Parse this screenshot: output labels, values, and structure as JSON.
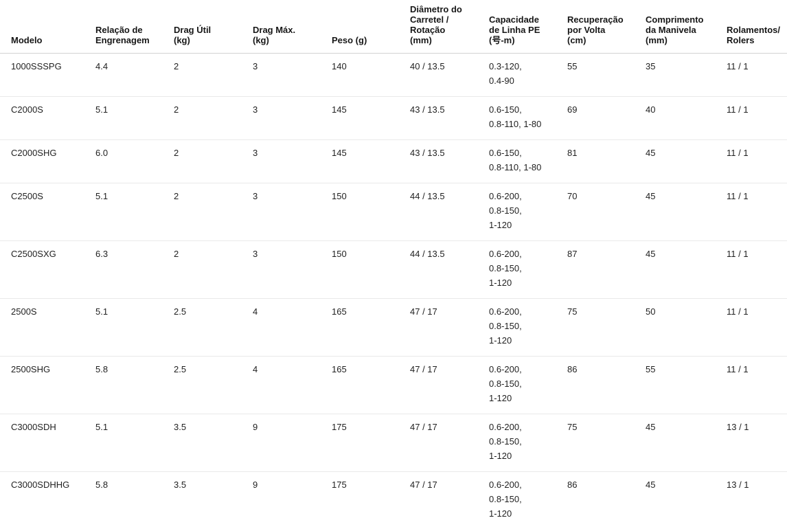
{
  "table": {
    "column_keys": [
      "modelo",
      "relacao-engrenagem",
      "drag-util",
      "drag-max",
      "peso",
      "diametro-carretel",
      "capacidade-linha-pe",
      "recuperacao-volta",
      "comprimento-manivela",
      "rolamentos"
    ],
    "columns": [
      "Modelo",
      "Relação de\nEngrenagem",
      "Drag Útil\n(kg)",
      "Drag Máx.\n(kg)",
      "Peso (g)",
      "Diâmetro do\nCarretel /\nRotação\n(mm)",
      "Capacidade\nde Linha PE\n(号-m)",
      "Recuperação\npor Volta\n(cm)",
      "Comprimento\nda Manivela\n(mm)",
      "Rolamentos/\nRolers"
    ],
    "rows": [
      [
        "1000SSSPG",
        "4.4",
        "2",
        "3",
        "140",
        "40 / 13.5",
        "0.3-120,\n0.4-90",
        "55",
        "35",
        "11 / 1"
      ],
      [
        "C2000S",
        "5.1",
        "2",
        "3",
        "145",
        "43 / 13.5",
        "0.6-150,\n0.8-110, 1-80",
        "69",
        "40",
        "11 / 1"
      ],
      [
        "C2000SHG",
        "6.0",
        "2",
        "3",
        "145",
        "43 / 13.5",
        "0.6-150,\n0.8-110, 1-80",
        "81",
        "45",
        "11 / 1"
      ],
      [
        "C2500S",
        "5.1",
        "2",
        "3",
        "150",
        "44 / 13.5",
        "0.6-200,\n0.8-150,\n1-120",
        "70",
        "45",
        "11 / 1"
      ],
      [
        "C2500SXG",
        "6.3",
        "2",
        "3",
        "150",
        "44 / 13.5",
        "0.6-200,\n0.8-150,\n1-120",
        "87",
        "45",
        "11 / 1"
      ],
      [
        "2500S",
        "5.1",
        "2.5",
        "4",
        "165",
        "47 / 17",
        "0.6-200,\n0.8-150,\n1-120",
        "75",
        "50",
        "11 / 1"
      ],
      [
        "2500SHG",
        "5.8",
        "2.5",
        "4",
        "165",
        "47 / 17",
        "0.6-200,\n0.8-150,\n1-120",
        "86",
        "55",
        "11 / 1"
      ],
      [
        "C3000SDH",
        "5.1",
        "3.5",
        "9",
        "175",
        "47 / 17",
        "0.6-200,\n0.8-150,\n1-120",
        "75",
        "45",
        "13 / 1"
      ],
      [
        "C3000SDHHG",
        "5.8",
        "3.5",
        "9",
        "175",
        "47 / 17",
        "0.6-200,\n0.8-150,\n1-120",
        "86",
        "45",
        "13 / 1"
      ]
    ],
    "colors": {
      "header_text": "#171717",
      "body_text": "#1f1f1f",
      "header_border": "#d1d1d1",
      "row_border": "#e9e9e9",
      "background": "#ffffff"
    }
  }
}
